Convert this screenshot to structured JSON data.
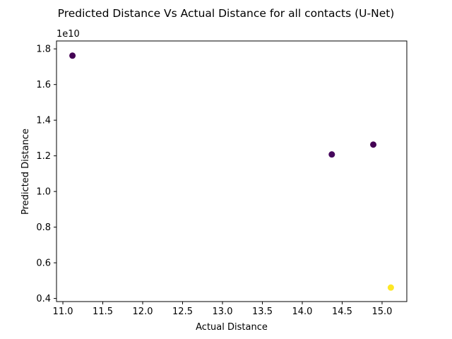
{
  "chart_data": {
    "type": "scatter",
    "title": "Predicted Distance Vs Actual Distance for all contacts (U-Net)",
    "xlabel": "Actual Distance",
    "ylabel": "Predicted Distance",
    "y_offset_label": "1e10",
    "xlim": [
      10.92,
      15.31
    ],
    "ylim": [
      0.3825,
      1.8444
    ],
    "x_ticks": [
      11.0,
      11.5,
      12.0,
      12.5,
      13.0,
      13.5,
      14.0,
      14.5,
      15.0
    ],
    "x_tick_labels": [
      "11.0",
      "11.5",
      "12.0",
      "12.5",
      "13.0",
      "13.5",
      "14.0",
      "14.5",
      "15.0"
    ],
    "y_ticks": [
      0.4,
      0.6,
      0.8,
      1.0,
      1.2,
      1.4,
      1.6,
      1.8
    ],
    "y_tick_labels": [
      "0.4",
      "0.6",
      "0.8",
      "1.0",
      "1.2",
      "1.4",
      "1.6",
      "1.8"
    ],
    "grid": false,
    "points": [
      {
        "x": 11.12,
        "y": 1.762,
        "color": "#440154"
      },
      {
        "x": 14.37,
        "y": 1.208,
        "color": "#46085c"
      },
      {
        "x": 14.89,
        "y": 1.263,
        "color": "#440154"
      },
      {
        "x": 15.11,
        "y": 0.461,
        "color": "#fde725"
      }
    ]
  }
}
